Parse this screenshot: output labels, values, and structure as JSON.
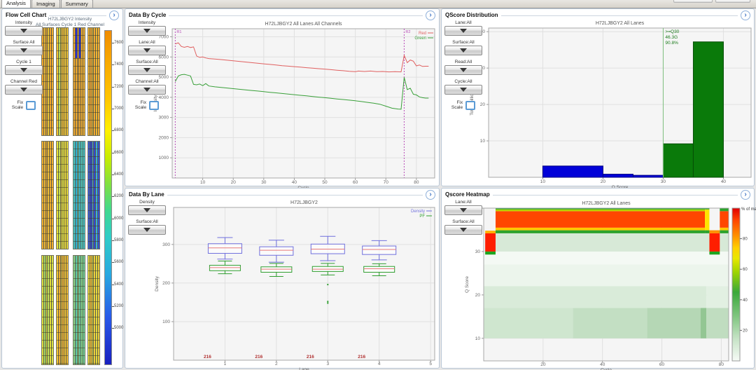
{
  "icons": {
    "expand": "›"
  },
  "window": {
    "tabs": [
      {
        "label": "Analysis",
        "active": true
      },
      {
        "label": "Imaging",
        "active": false
      },
      {
        "label": "Summary",
        "active": false
      }
    ]
  },
  "flow_cell": {
    "title": "Flow Cell Chart",
    "chart_title_1": "H72LJBGY2 Intensity",
    "chart_title_2": "All Surfaces Cycle 1 Red Channel",
    "controls": [
      "Intensity",
      "Surface All",
      "Cycle 1",
      "Channel Red"
    ],
    "fix_scale_label": "Fix\nScale",
    "colorbar_values": [
      7600,
      7400,
      7200,
      7000,
      6800,
      6600,
      6400,
      6200,
      6000,
      5800,
      5600,
      5400,
      5200,
      5000
    ],
    "groups": [
      {
        "lanes": [
          {
            "cols": [
              "#f2a72e",
              "#eeb832",
              "#f4a52e",
              "#eec634",
              "#f2a72e",
              "#efae30"
            ]
          },
          {
            "cols": [
              "#f2c133",
              "#b9e058",
              "#f4cd37",
              "#eebb33",
              "#f4c837",
              "#edc033"
            ]
          },
          {
            "cols": [
              "#efa72e",
              {
                "top": "#2b2fd4",
                "bottom": "#f2ab30",
                "split": 28
              },
              "#f2a92f",
              {
                "top": "#2b2fd4",
                "bottom": "#efa72e",
                "split": 28
              },
              "#efac30",
              "#f2b031"
            ]
          },
          {
            "cols": [
              "#f0b231",
              "#f4a82e",
              "#edc434",
              "#f2ab30",
              "#f0b832",
              "#f2ad30"
            ]
          }
        ]
      },
      {
        "lanes": [
          {
            "cols": [
              "#f2b031",
              "#f5bc34",
              "#efa72e",
              "#f5c035",
              "#efad30",
              "#f2b031"
            ]
          },
          {
            "cols": [
              "#e9e03a",
              "#c6e453",
              "#f0dc3a",
              "#e3e13f",
              "#eedd3c",
              "#e7dc3a"
            ]
          },
          {
            "cols": [
              "#45c8c8",
              "#31b2d6",
              "#56d0b6",
              "#39bccf",
              "#4cc8c0",
              "#41c4cb"
            ]
          },
          {
            "cols": [
              "#3a5ad8",
              "#2a42cc",
              "#41a8dc",
              "#3148d0",
              "#39b0d8",
              "#3152d4"
            ]
          }
        ]
      },
      {
        "lanes": [
          {
            "cols": [
              "#dfe041",
              "#a8dc61",
              "#e7e43d",
              "#c4e355",
              "#e3e03e",
              "#d8e047"
            ]
          },
          {
            "cols": [
              "#f0c434",
              "#f2b031",
              "#edc937",
              "#f0b433",
              "#f2c434",
              "#f0bb33"
            ]
          },
          {
            "cols": [
              "#8ad889",
              "#61ccaa",
              "#91dc81",
              "#69d0a0",
              "#81d890",
              "#71d49b"
            ]
          },
          {
            "cols": [
              "#e8d83c",
              "#f0c034",
              "#dde044",
              "#ecd03a",
              "#e4dc40",
              "#e8cc3a"
            ]
          }
        ]
      }
    ]
  },
  "data_by_cycle": {
    "title": "Data By Cycle",
    "controls": [
      "Intensity",
      "Lane:All",
      "Surface:All",
      "Channel:All"
    ],
    "fix_scale_label": "Fix\nScale",
    "chart": {
      "type": "line",
      "title": "H72LJBGY2 All Lanes All Channels",
      "xlabel": "Cycle",
      "ylabel": "Intensity",
      "xlim": [
        0,
        86
      ],
      "ylim": [
        0,
        7400
      ],
      "xticks": [
        10,
        20,
        30,
        40,
        50,
        60,
        70,
        80
      ],
      "yticks": [
        1000,
        2000,
        3000,
        4000,
        5000,
        6000,
        7000
      ],
      "read_markers": [
        {
          "x": 1,
          "label": "R1"
        },
        {
          "x": 76,
          "label": "R2"
        }
      ],
      "series": [
        {
          "name": "Red",
          "color": "#e06060",
          "points": [
            [
              1,
              6650
            ],
            [
              2,
              6700
            ],
            [
              3,
              6520
            ],
            [
              4,
              6480
            ],
            [
              5,
              6520
            ],
            [
              6,
              6470
            ],
            [
              7,
              6500
            ],
            [
              8,
              6050
            ],
            [
              9,
              5980
            ],
            [
              10,
              6000
            ],
            [
              11,
              5950
            ],
            [
              12,
              5920
            ],
            [
              14,
              5900
            ],
            [
              16,
              5870
            ],
            [
              18,
              5840
            ],
            [
              20,
              5810
            ],
            [
              22,
              5780
            ],
            [
              24,
              5750
            ],
            [
              26,
              5720
            ],
            [
              28,
              5690
            ],
            [
              30,
              5660
            ],
            [
              32,
              5630
            ],
            [
              34,
              5600
            ],
            [
              36,
              5570
            ],
            [
              38,
              5545
            ],
            [
              40,
              5520
            ],
            [
              42,
              5495
            ],
            [
              44,
              5470
            ],
            [
              46,
              5445
            ],
            [
              48,
              5420
            ],
            [
              50,
              5400
            ],
            [
              52,
              5370
            ],
            [
              54,
              5345
            ],
            [
              56,
              5320
            ],
            [
              58,
              5290
            ],
            [
              60,
              5270
            ],
            [
              61,
              5300
            ],
            [
              63,
              5280
            ],
            [
              65,
              5300
            ],
            [
              67,
              5270
            ],
            [
              69,
              5280
            ],
            [
              71,
              5260
            ],
            [
              73,
              5270
            ],
            [
              75,
              5260
            ],
            [
              76,
              6080
            ],
            [
              77,
              5720
            ],
            [
              78,
              5850
            ],
            [
              79,
              5790
            ],
            [
              80,
              5560
            ],
            [
              81,
              5600
            ],
            [
              82,
              5530
            ],
            [
              83,
              5540
            ],
            [
              84,
              5540
            ]
          ]
        },
        {
          "name": "Green",
          "color": "#3aa03a",
          "points": [
            [
              1,
              4780
            ],
            [
              2,
              5060
            ],
            [
              3,
              5120
            ],
            [
              4,
              5140
            ],
            [
              5,
              5100
            ],
            [
              6,
              5060
            ],
            [
              7,
              4640
            ],
            [
              8,
              4620
            ],
            [
              9,
              4660
            ],
            [
              10,
              4580
            ],
            [
              11,
              4680
            ],
            [
              12,
              4560
            ],
            [
              14,
              4520
            ],
            [
              16,
              4490
            ],
            [
              18,
              4460
            ],
            [
              20,
              4430
            ],
            [
              22,
              4400
            ],
            [
              24,
              4370
            ],
            [
              26,
              4340
            ],
            [
              28,
              4310
            ],
            [
              30,
              4280
            ],
            [
              32,
              4250
            ],
            [
              34,
              4220
            ],
            [
              36,
              4190
            ],
            [
              38,
              4160
            ],
            [
              40,
              4130
            ],
            [
              42,
              4100
            ],
            [
              44,
              4070
            ],
            [
              46,
              4040
            ],
            [
              48,
              4010
            ],
            [
              50,
              3980
            ],
            [
              52,
              3950
            ],
            [
              54,
              3920
            ],
            [
              56,
              3890
            ],
            [
              58,
              3860
            ],
            [
              60,
              3830
            ],
            [
              62,
              3790
            ],
            [
              64,
              3750
            ],
            [
              66,
              3710
            ],
            [
              68,
              3660
            ],
            [
              70,
              3560
            ],
            [
              72,
              3460
            ],
            [
              74,
              3420
            ],
            [
              75,
              3410
            ],
            [
              76,
              4990
            ],
            [
              77,
              4380
            ],
            [
              78,
              4450
            ],
            [
              79,
              4150
            ],
            [
              80,
              4120
            ],
            [
              81,
              4020
            ],
            [
              82,
              3980
            ],
            [
              83,
              3960
            ],
            [
              84,
              3960
            ]
          ]
        }
      ]
    }
  },
  "qscore_distribution": {
    "title": "QScore Distribution",
    "controls": [
      "Lane:All",
      "Surface:All",
      "Read:All",
      "Cycle:All"
    ],
    "fix_scale_label": "Fix\nScale",
    "chart": {
      "type": "bar",
      "title": "H72LJBGY2 All Lanes",
      "xlabel": "Q Score",
      "ylabel": "Total (billion)",
      "xlim": [
        1,
        44.6
      ],
      "ylim": [
        0,
        41
      ],
      "xticks": [
        10,
        20,
        30,
        40
      ],
      "yticks": [
        10,
        20,
        30,
        40
      ],
      "threshold": 30,
      "annotation": [
        ">=Q30",
        "46.3G",
        "90.8%"
      ],
      "bars": [
        {
          "x0": 10,
          "x1": 20,
          "v": 3.1,
          "color": "#0000d8",
          "edge": "#000080"
        },
        {
          "x0": 20,
          "x1": 25,
          "v": 0.85,
          "color": "#0000d8",
          "edge": "#000080"
        },
        {
          "x0": 25,
          "x1": 30,
          "v": 0.55,
          "color": "#0000d8",
          "edge": "#000080"
        },
        {
          "x0": 30,
          "x1": 35,
          "v": 9.2,
          "color": "#0a7a0a",
          "edge": "#064d06"
        },
        {
          "x0": 35,
          "x1": 40,
          "v": 37.2,
          "color": "#0a7a0a",
          "edge": "#064d06"
        }
      ]
    }
  },
  "data_by_lane": {
    "title": "Data By Lane",
    "controls": [
      "Density",
      "Surface:All"
    ],
    "chart": {
      "type": "box",
      "title": "H72LJBGY2",
      "xlabel": "Lane",
      "ylabel": "Density",
      "xlim": [
        0,
        5.08
      ],
      "ylim": [
        0,
        396
      ],
      "xticks": [
        1,
        2,
        3,
        4,
        5
      ],
      "yticks": [
        100,
        200,
        300
      ],
      "legend": [
        {
          "name": "Density",
          "color": "#7070dd"
        },
        {
          "name": "PF",
          "color": "#2f9e2f"
        }
      ],
      "median_color": "#e87a7a",
      "lanes": [
        {
          "lane": 1,
          "tiles": "216",
          "density": {
            "lo": 262,
            "q1": 277,
            "med": 291,
            "q3": 302,
            "hi": 318
          },
          "pf": {
            "lo": 224,
            "q1": 232,
            "med": 240,
            "q3": 246,
            "hi": 257
          }
        },
        {
          "lane": 2,
          "tiles": "216",
          "density": {
            "lo": 254,
            "q1": 272,
            "med": 285,
            "q3": 294,
            "hi": 311
          },
          "pf": {
            "lo": 217,
            "q1": 228,
            "med": 236,
            "q3": 242,
            "hi": 251
          }
        },
        {
          "lane": 3,
          "tiles": "216",
          "density": {
            "lo": 258,
            "q1": 276,
            "med": 288,
            "q3": 301,
            "hi": 321
          },
          "pf": {
            "lo": 221,
            "q1": 230,
            "med": 236,
            "q3": 243,
            "hi": 251,
            "outliers": [
              196,
              152,
              148
            ]
          }
        },
        {
          "lane": 4,
          "tiles": "216",
          "density": {
            "lo": 260,
            "q1": 274,
            "med": 287,
            "q3": 296,
            "hi": 310
          },
          "pf": {
            "lo": 219,
            "q1": 228,
            "med": 237,
            "q3": 243,
            "hi": 250
          }
        }
      ]
    }
  },
  "qscore_heatmap": {
    "title": "Qscore Heatmap",
    "controls": [
      "Lane:All",
      "Surface:All"
    ],
    "chart": {
      "type": "heatmap",
      "title": "H72LJBGY2 All Lanes",
      "xlabel": "Cycle",
      "ylabel": "Q Score",
      "xlim": [
        0,
        82.5
      ],
      "ylim": [
        4.8,
        40
      ],
      "xticks": [
        20,
        40,
        60,
        80
      ],
      "yticks": [
        10,
        20,
        30,
        40
      ],
      "colorbar": {
        "title": "% of max",
        "ticks": [
          80,
          60,
          40,
          20
        ],
        "stops": [
          [
            "0%",
            "#e00000"
          ],
          [
            "8%",
            "#ff4600"
          ],
          [
            "18%",
            "#ff9000"
          ],
          [
            "26%",
            "#ffd000"
          ],
          [
            "33%",
            "#e8e800"
          ],
          [
            "42%",
            "#9ed400"
          ],
          [
            "55%",
            "#3aa83a"
          ],
          [
            "70%",
            "#7cc47c"
          ],
          [
            "85%",
            "#c4e2c4"
          ],
          [
            "100%",
            "#f6fbf6"
          ]
        ]
      },
      "cells": [
        [
          0,
          30,
          10,
          17,
          "#cfe6cf"
        ],
        [
          30,
          55,
          10,
          17,
          "#c3dfc3"
        ],
        [
          55,
          73,
          10,
          17,
          "#b5d7b5"
        ],
        [
          73,
          75,
          10,
          17,
          "#93c693"
        ],
        [
          75,
          83,
          10,
          17,
          "#c0ddc0"
        ],
        [
          0,
          75,
          17,
          22,
          "#d9ebd9"
        ],
        [
          75,
          83,
          17,
          22,
          "#e2f0e2"
        ],
        [
          0,
          83,
          22,
          27,
          "#ecf5ec"
        ],
        [
          0,
          83,
          27,
          30,
          "#f4f9f4"
        ],
        [
          4,
          83,
          30,
          34.2,
          "#d7e9d7"
        ],
        [
          0.5,
          4,
          29.3,
          30,
          "#1fa51f"
        ],
        [
          0.5,
          4,
          30,
          34.2,
          "#fe1e00"
        ],
        [
          0.5,
          4,
          34.2,
          34.8,
          "#ffb000"
        ],
        [
          4,
          74.5,
          34.2,
          34.9,
          "#2da32d"
        ],
        [
          4,
          74.5,
          34.9,
          35.5,
          "#ffc800"
        ],
        [
          4,
          74.5,
          35.5,
          39.3,
          "#ff4600"
        ],
        [
          4,
          74.5,
          39.3,
          39.7,
          "#b4d400"
        ],
        [
          4,
          74.5,
          39.7,
          40,
          "#2da32d"
        ],
        [
          74.5,
          76,
          34.2,
          34.9,
          "#2da32d"
        ],
        [
          74.5,
          76,
          34.9,
          39.7,
          "#ffe400"
        ],
        [
          74.5,
          76,
          39.7,
          40,
          "#2da32d"
        ],
        [
          76,
          79.5,
          29.3,
          30,
          "#1fa51f"
        ],
        [
          76,
          79.5,
          30,
          34.2,
          "#fe1e00"
        ],
        [
          76,
          79.5,
          34.2,
          34.9,
          "#ff9000"
        ],
        [
          79.5,
          82.5,
          34.2,
          34.9,
          "#2da32d"
        ],
        [
          79.5,
          82.5,
          34.9,
          35.5,
          "#ffc800"
        ],
        [
          79.5,
          82.5,
          35.5,
          39.3,
          "#ff4600"
        ],
        [
          79.5,
          82.5,
          39.3,
          40,
          "#2da32d"
        ]
      ]
    }
  }
}
